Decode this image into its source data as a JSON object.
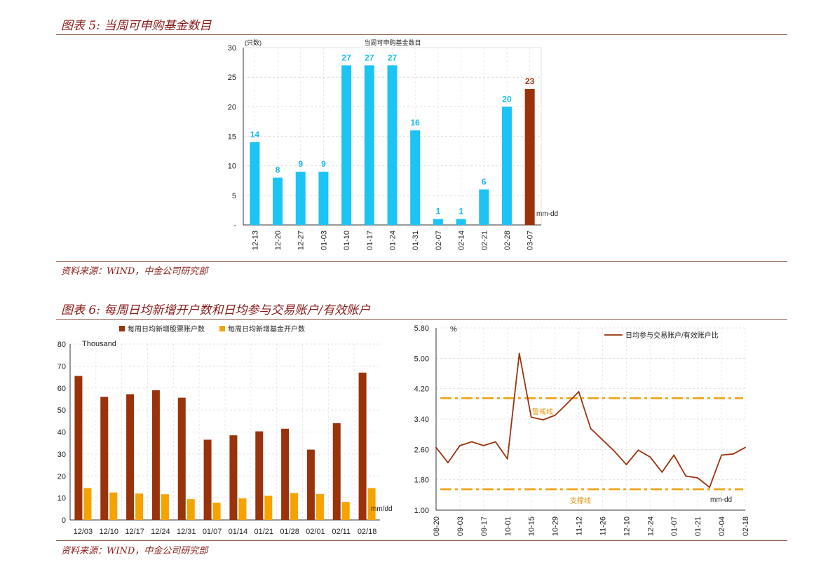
{
  "fig5": {
    "heading": "图表 5:  当周可申购基金数目",
    "source": "资料来源：WIND，中金公司研究部"
  },
  "fig6": {
    "heading": "图表 6:  每周日均新增开户数和日均参与交易账户/有效账户",
    "source": "资料来源：WIND，中金公司研究部"
  },
  "colors": {
    "cyan": "#1CC4F4",
    "cyan_label": "#19BDEB",
    "brown": "#9A330C",
    "orange": "#F5A300",
    "heading": "#8B1A1A"
  },
  "chart_data": [
    {
      "type": "bar",
      "title": "当周可申购基金数目",
      "unit_label": "(只数)",
      "x_note": "mm-dd",
      "categories": [
        "12-13",
        "12-20",
        "12-27",
        "01-03",
        "01-10",
        "01-17",
        "01-24",
        "01-31",
        "02-07",
        "02-14",
        "02-21",
        "02-28",
        "03-07"
      ],
      "values": [
        14,
        8,
        9,
        9,
        27,
        27,
        27,
        16,
        1,
        1,
        6,
        20,
        23
      ],
      "highlight_last": true,
      "ylim": [
        0,
        30
      ],
      "yticks": [
        "-",
        "5",
        "10",
        "15",
        "20",
        "25",
        "30"
      ],
      "grid": true
    },
    {
      "type": "bar",
      "unit_label": "Thousand",
      "x_note": "mm/dd",
      "categories": [
        "12/03",
        "12/10",
        "12/17",
        "12/24",
        "12/31",
        "01/07",
        "01/14",
        "01/21",
        "01/28",
        "02/01",
        "02/11",
        "02/18"
      ],
      "series": [
        {
          "name": "每周日均新增股票账户数",
          "color": "#9A330C",
          "values": [
            65.5,
            56,
            57.2,
            59,
            55.6,
            36.5,
            38.5,
            40.3,
            41.5,
            32,
            44,
            67
          ]
        },
        {
          "name": "每周日均新增基金开户数",
          "color": "#F5A300",
          "values": [
            14.5,
            12.5,
            12,
            11.7,
            9.5,
            7.8,
            9.8,
            11,
            12.2,
            11.8,
            8.2,
            14.5
          ]
        }
      ],
      "ylim": [
        0,
        80
      ],
      "yticks": [
        "0",
        "10",
        "20",
        "30",
        "40",
        "50",
        "60",
        "70",
        "80"
      ],
      "legend": "top",
      "grid": true
    },
    {
      "type": "line",
      "unit_label": "%",
      "x_note": "mm-dd",
      "x": [
        "08-20",
        "08-27",
        "09-03",
        "09-10",
        "09-17",
        "09-24",
        "10-01",
        "10-08",
        "10-15",
        "10-22",
        "10-29",
        "11-05",
        "11-12",
        "11-19",
        "11-26",
        "12-03",
        "12-10",
        "12-17",
        "12-24",
        "12-31",
        "01-07",
        "01-14",
        "01-21",
        "01-28",
        "02-04",
        "02-11",
        "02-18"
      ],
      "xtick_labels": [
        "08-20",
        "09-03",
        "09-17",
        "10-01",
        "10-15",
        "10-29",
        "11-12",
        "11-26",
        "12-10",
        "12-24",
        "01-07",
        "01-21",
        "02-04",
        "02-18"
      ],
      "series": [
        {
          "name": "日均参与交易账户/有效账户比",
          "color": "#9A330C",
          "values": [
            2.65,
            2.25,
            2.7,
            2.8,
            2.7,
            2.8,
            2.35,
            5.13,
            3.45,
            3.38,
            3.5,
            3.8,
            4.12,
            3.15,
            2.85,
            2.55,
            2.2,
            2.58,
            2.4,
            2.0,
            2.45,
            1.9,
            1.85,
            1.6,
            2.45,
            2.48,
            2.65
          ]
        }
      ],
      "reference_lines": [
        {
          "label": "警戒线",
          "value": 3.95,
          "color": "#F0A010"
        },
        {
          "label": "支撑线",
          "value": 1.55,
          "color": "#F0A010"
        }
      ],
      "ylim": [
        1.0,
        5.8
      ],
      "yticks": [
        "1.00",
        "1.80",
        "2.60",
        "3.40",
        "4.20",
        "5.00",
        "5.80"
      ],
      "legend": "top-right",
      "grid": true
    }
  ]
}
